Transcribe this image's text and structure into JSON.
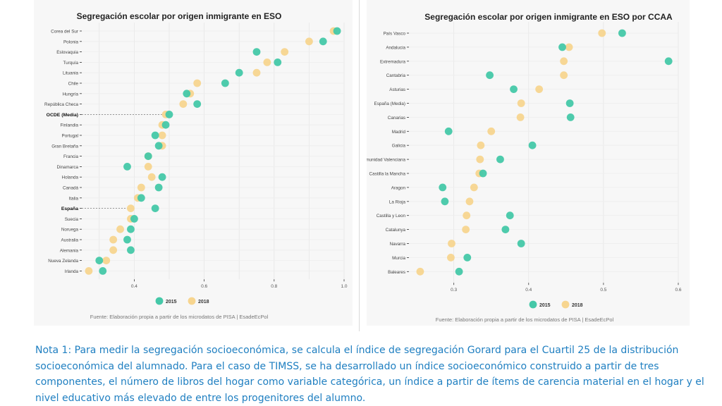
{
  "chart_data": [
    {
      "type": "scatter",
      "title": "Segregación escolar por origen inmigrante en ESO",
      "xlim": [
        0.25,
        1.0
      ],
      "xticks": [
        0.4,
        0.6,
        0.8,
        1.0
      ],
      "xtick_labels": [
        "0.4",
        "0.6",
        "0.8",
        "1.0"
      ],
      "grid": true,
      "legend": "bottom-center",
      "categories": [
        "Corea del Sur",
        "Polonia",
        "Eslovaquia",
        "Turquía",
        "Lituania",
        "Chile",
        "Hungría",
        "República Checa",
        "OCDE (Media)",
        "Finlandia",
        "Portugal",
        "Gran Bretaña",
        "Francia",
        "Dinamarca",
        "Holanda",
        "Canadá",
        "Italia",
        "España",
        "Suecia",
        "Noruega",
        "Australia",
        "Alemania",
        "Nueva Zelanda",
        "Irlanda"
      ],
      "highlighted": [
        "OCDE (Media)",
        "España"
      ],
      "series": [
        {
          "name": "2015",
          "color": "#45c8a8",
          "values": [
            0.98,
            0.94,
            0.75,
            0.81,
            0.7,
            0.66,
            0.55,
            0.58,
            0.5,
            0.49,
            0.46,
            0.47,
            0.44,
            0.38,
            0.48,
            0.47,
            0.42,
            0.46,
            0.4,
            0.39,
            0.38,
            0.39,
            0.3,
            0.31
          ]
        },
        {
          "name": "2018",
          "color": "#f7d58f",
          "values": [
            0.97,
            0.9,
            0.83,
            0.78,
            0.75,
            0.58,
            0.56,
            0.54,
            0.49,
            0.48,
            0.48,
            0.48,
            0.44,
            0.44,
            0.45,
            0.42,
            0.41,
            0.39,
            0.39,
            0.36,
            0.34,
            0.34,
            0.32,
            0.27
          ]
        }
      ]
    },
    {
      "type": "scatter",
      "title": "Segregación escolar por origen inmigrante en ESO por CCAA",
      "xlim": [
        0.24,
        0.6
      ],
      "xticks": [
        0.3,
        0.4,
        0.5,
        0.6
      ],
      "xtick_labels": [
        "0.3",
        "0.4",
        "0.5",
        "0.6"
      ],
      "grid": true,
      "legend": "bottom-center",
      "categories": [
        "País Vasco",
        "Andalucia",
        "Extremadura",
        "Cantabria",
        "Asturias",
        "España (Media)",
        "Canarias",
        "Madrid",
        "Galicia",
        "Comunidad Valenciana",
        "Castilla la Mancha",
        "Aragon",
        "La Rioja",
        "Castilla y Leon",
        "Catalunya",
        "Navarra",
        "Murcia",
        "Baleares"
      ],
      "series": [
        {
          "name": "2015",
          "color": "#45c8a8",
          "values": [
            0.525,
            0.445,
            0.587,
            0.348,
            0.38,
            0.455,
            0.456,
            0.293,
            0.405,
            0.362,
            0.339,
            0.285,
            0.288,
            0.375,
            0.369,
            0.39,
            0.318,
            0.307
          ]
        },
        {
          "name": "2018",
          "color": "#f7d58f",
          "values": [
            0.498,
            0.454,
            0.447,
            0.447,
            0.414,
            0.39,
            0.389,
            0.35,
            0.336,
            0.335,
            0.334,
            0.327,
            0.321,
            0.317,
            0.316,
            0.297,
            0.296,
            0.255
          ]
        }
      ]
    }
  ],
  "source_left": "Fuente: Elaboración propia a partir de los microdatos de PISA | EsadeEcPol",
  "source_right": "Fuente: Elaboración propia a partir de los microdatos de PISA | EsadeEcPol",
  "note_lines": [
    "Nota 1: Para medir la segregación socioeconómica, se calcula el índice de segregación Gorard para el Cuartil 25 de la distribución",
    "socioeconómica del alumnado. Para el caso de TIMSS, se ha desarrollado un índice socioeconómico construido a partir de tres",
    "componentes, el número de libros del hogar como variable categórica, un índice a partir de ítems de carencia material en el hogar y el",
    "nivel educativo más elevado de entre los progenitores del alumno."
  ]
}
